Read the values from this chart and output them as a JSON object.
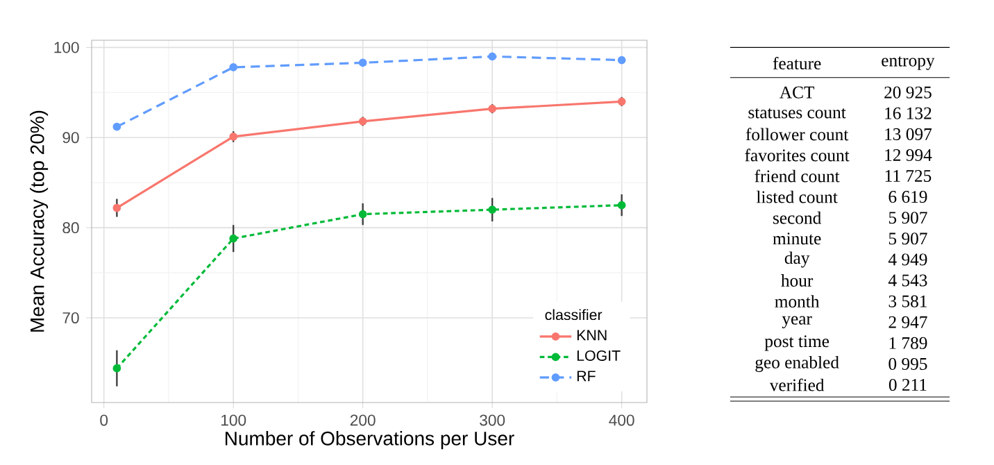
{
  "chart_data": [
    {
      "type": "line",
      "xlabel": "Number of Observations per User",
      "ylabel": "Mean Accuracy (top 20%)",
      "legend_title": "classifier",
      "x": [
        10,
        100,
        200,
        300,
        400
      ],
      "xlim": [
        -9.5,
        419.5
      ],
      "ylim": [
        60.6,
        100.8
      ],
      "xticks": [
        0,
        100,
        200,
        300,
        400
      ],
      "yticks": [
        70,
        80,
        90,
        100
      ],
      "grid": true,
      "legend": "bottom right",
      "marker": "circle",
      "series": [
        {
          "name": "KNN",
          "color": "#f8766d",
          "line_style": "solid",
          "values": [
            82.2,
            90.1,
            91.8,
            93.2,
            94.0
          ],
          "errors": [
            1.0,
            0.6,
            0.5,
            0.5,
            0.5
          ]
        },
        {
          "name": "LOGIT",
          "color": "#00ba38",
          "line_style": "dotted",
          "values": [
            64.4,
            78.8,
            81.5,
            82.0,
            82.5
          ],
          "errors": [
            2.0,
            1.5,
            1.2,
            1.3,
            1.2
          ]
        },
        {
          "name": "RF",
          "color": "#619cff",
          "line_style": "dashed",
          "values": [
            91.2,
            97.8,
            98.3,
            99.0,
            98.6
          ]
        }
      ]
    },
    {
      "type": "other",
      "xlabel": "feature",
      "ylabel": "entropy",
      "categories": [
        "ACT",
        "statuses count",
        "follower count",
        "favorites count",
        "friend count",
        "listed count",
        "second",
        "minute",
        "day",
        "hour",
        "month",
        "year",
        "post time",
        "geo enabled",
        "verified"
      ],
      "value_labels": [
        "20 925",
        "16 132",
        "13 097",
        "12 994",
        "11 725",
        "6 619",
        "5 907",
        "5 907",
        "4 949",
        "4 543",
        "3 581",
        "2 947",
        "1 789",
        "0 995",
        "0 211"
      ]
    }
  ]
}
